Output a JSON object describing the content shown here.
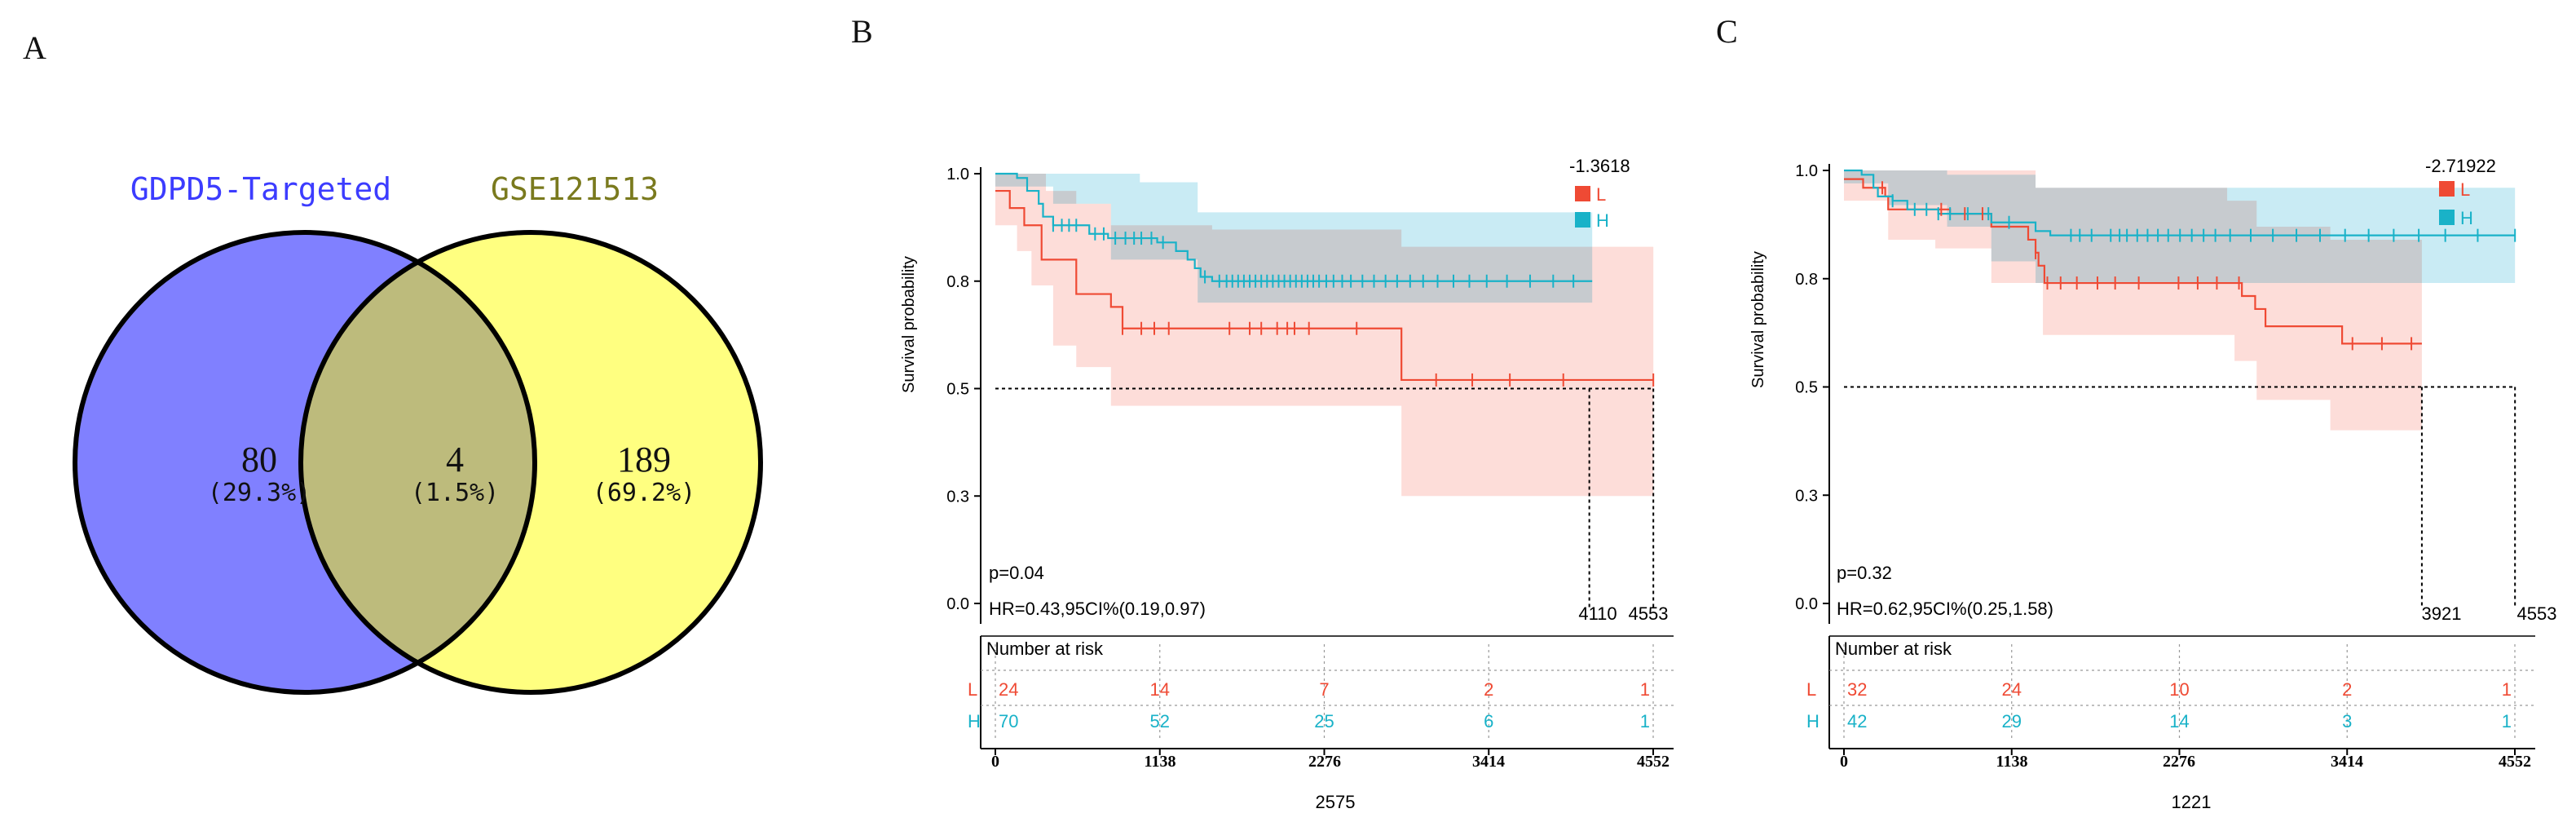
{
  "chart_data": [
    {
      "type": "venn",
      "panel_label": "A",
      "sets": [
        {
          "name": "GDPD5-Targeted",
          "color": "#8080ff",
          "label_color": "#3c3cff"
        },
        {
          "name": "GSE121513",
          "color": "#ffff80",
          "label_color": "#7a7a1e"
        }
      ],
      "overlap_color": "#bdbb7c",
      "regions": [
        {
          "region": "GDPD5-Targeted only",
          "count": "80",
          "percent": "(29.3%)"
        },
        {
          "region": "intersection",
          "count": "4",
          "percent": "(1.5%)"
        },
        {
          "region": "GSE121513 only",
          "count": "189",
          "percent": "(69.2%)"
        }
      ]
    },
    {
      "type": "survival",
      "panel_label": "B",
      "ylabel": "Survival probability",
      "yticks": [
        "0.0",
        "0.3",
        "0.5",
        "0.8",
        "1.0"
      ],
      "ytick_values": [
        0,
        0.25,
        0.5,
        0.75,
        1.0
      ],
      "xlim": [
        0,
        4552
      ],
      "xticks": [
        "0",
        "1138",
        "2276",
        "3414",
        "4552"
      ],
      "xlabel": "2575",
      "legend_title": "-1.3618",
      "legend": [
        {
          "name": "L",
          "color": "#ef4a34"
        },
        {
          "name": "H",
          "color": "#19b2c8"
        }
      ],
      "p_value": "p=0.04",
      "hr": "HR=0.43,95CI%(0.19,0.97)",
      "median_labels": [
        "4110",
        "4553"
      ],
      "median_times": [
        4110,
        4553
      ],
      "risk_title": "Number at risk",
      "risk_table": [
        {
          "group": "L",
          "values": [
            "24",
            "14",
            "7",
            "2",
            "1"
          ]
        },
        {
          "group": "H",
          "values": [
            "70",
            "52",
            "25",
            "6",
            "1"
          ]
        }
      ],
      "series": [
        {
          "name": "L",
          "color": "#ef4a34",
          "ci_color": "#fcd2cc",
          "steps": [
            [
              0,
              0.96
            ],
            [
              100,
              0.92
            ],
            [
              200,
              0.88
            ],
            [
              320,
              0.8
            ],
            [
              560,
              0.76
            ],
            [
              560,
              0.72
            ],
            [
              800,
              0.69
            ],
            [
              880,
              0.64
            ],
            [
              2710,
              0.64
            ],
            [
              2810,
              0.52
            ],
            [
              4553,
              0.52
            ]
          ],
          "upper": [
            [
              0,
              1.0
            ],
            [
              150,
              1.0
            ],
            [
              350,
              0.96
            ],
            [
              560,
              0.93
            ],
            [
              800,
              0.88
            ],
            [
              1500,
              0.87
            ],
            [
              2710,
              0.87
            ],
            [
              2810,
              0.83
            ],
            [
              4553,
              0.83
            ]
          ],
          "lower": [
            [
              0,
              0.88
            ],
            [
              150,
              0.82
            ],
            [
              250,
              0.74
            ],
            [
              400,
              0.6
            ],
            [
              560,
              0.55
            ],
            [
              800,
              0.46
            ],
            [
              2710,
              0.46
            ],
            [
              2810,
              0.25
            ],
            [
              4553,
              0.25
            ]
          ],
          "censor": [
            880,
            1010,
            1100,
            1200,
            1620,
            1760,
            1840,
            1950,
            2020,
            2070,
            2170,
            2500,
            3050,
            3300,
            3560,
            3930,
            4553
          ]
        },
        {
          "name": "H",
          "color": "#19b2c8",
          "ci_color": "#c9ebf4",
          "steps": [
            [
              0,
              1.0
            ],
            [
              150,
              0.99
            ],
            [
              220,
              0.96
            ],
            [
              300,
              0.93
            ],
            [
              330,
              0.9
            ],
            [
              400,
              0.88
            ],
            [
              560,
              0.88
            ],
            [
              650,
              0.86
            ],
            [
              780,
              0.85
            ],
            [
              1120,
              0.84
            ],
            [
              1250,
              0.82
            ],
            [
              1330,
              0.8
            ],
            [
              1380,
              0.78
            ],
            [
              1420,
              0.76
            ],
            [
              1500,
              0.75
            ],
            [
              4130,
              0.75
            ]
          ],
          "upper": [
            [
              0,
              1.0
            ],
            [
              500,
              1.0
            ],
            [
              1000,
              0.98
            ],
            [
              1400,
              0.91
            ],
            [
              4130,
              0.91
            ]
          ],
          "lower": [
            [
              0,
              0.97
            ],
            [
              400,
              0.93
            ],
            [
              800,
              0.8
            ],
            [
              1400,
              0.7
            ],
            [
              4130,
              0.68
            ]
          ],
          "censor": [
            400,
            460,
            510,
            560,
            690,
            750,
            830,
            900,
            960,
            1010,
            1080,
            1160,
            1450,
            1550,
            1600,
            1640,
            1680,
            1720,
            1760,
            1800,
            1840,
            1880,
            1920,
            1960,
            2000,
            2040,
            2080,
            2120,
            2160,
            2200,
            2240,
            2290,
            2340,
            2400,
            2460,
            2540,
            2620,
            2700,
            2780,
            2870,
            2960,
            3060,
            3170,
            3280,
            3400,
            3540,
            3700,
            3860,
            4000
          ]
        }
      ]
    },
    {
      "type": "survival",
      "panel_label": "C",
      "ylabel": "Survival probability",
      "yticks": [
        "0.0",
        "0.3",
        "0.5",
        "0.8",
        "1.0"
      ],
      "ytick_values": [
        0,
        0.25,
        0.5,
        0.75,
        1.0
      ],
      "xlim": [
        0,
        4552
      ],
      "xticks": [
        "0",
        "1138",
        "2276",
        "3414",
        "4552"
      ],
      "xlabel": "1221",
      "legend_title": "-2.71922",
      "legend": [
        {
          "name": "L",
          "color": "#ef4a34"
        },
        {
          "name": "H",
          "color": "#19b2c8"
        }
      ],
      "p_value": "p=0.32",
      "hr": "HR=0.62,95CI%(0.25,1.58)",
      "median_labels": [
        "3921",
        "4553"
      ],
      "median_times": [
        3921,
        4553
      ],
      "risk_title": "Number at risk",
      "risk_table": [
        {
          "group": "L",
          "values": [
            "32",
            "24",
            "10",
            "2",
            "1"
          ]
        },
        {
          "group": "H",
          "values": [
            "42",
            "29",
            "14",
            "3",
            "1"
          ]
        }
      ],
      "series": [
        {
          "name": "L",
          "color": "#ef4a34",
          "ci_color": "#fcd2cc",
          "steps": [
            [
              0,
              0.98
            ],
            [
              130,
              0.96
            ],
            [
              280,
              0.94
            ],
            [
              300,
              0.91
            ],
            [
              620,
              0.91
            ],
            [
              720,
              0.9
            ],
            [
              1000,
              0.87
            ],
            [
              1250,
              0.84
            ],
            [
              1300,
              0.81
            ],
            [
              1320,
              0.78
            ],
            [
              1360,
              0.74
            ],
            [
              2620,
              0.74
            ],
            [
              2700,
              0.71
            ],
            [
              2790,
              0.68
            ],
            [
              2860,
              0.64
            ],
            [
              3300,
              0.64
            ],
            [
              3380,
              0.6
            ],
            [
              3921,
              0.6
            ]
          ],
          "upper": [
            [
              0,
              1.0
            ],
            [
              600,
              1.0
            ],
            [
              1300,
              0.96
            ],
            [
              1480,
              0.96
            ],
            [
              2600,
              0.93
            ],
            [
              2800,
              0.87
            ],
            [
              3300,
              0.84
            ],
            [
              3921,
              0.84
            ]
          ],
          "lower": [
            [
              0,
              0.93
            ],
            [
              300,
              0.84
            ],
            [
              620,
              0.82
            ],
            [
              1000,
              0.74
            ],
            [
              1350,
              0.62
            ],
            [
              2650,
              0.56
            ],
            [
              2800,
              0.47
            ],
            [
              3300,
              0.4
            ],
            [
              3921,
              0.4
            ]
          ],
          "censor": [
            260,
            660,
            820,
            940,
            1300,
            1380,
            1470,
            1580,
            1720,
            1840,
            2000,
            2270,
            2400,
            2530,
            2680,
            3450,
            3650,
            3850
          ]
        },
        {
          "name": "H",
          "color": "#19b2c8",
          "ci_color": "#c9ebf4",
          "steps": [
            [
              0,
              1.0
            ],
            [
              120,
              0.99
            ],
            [
              200,
              0.96
            ],
            [
              230,
              0.94
            ],
            [
              330,
              0.93
            ],
            [
              430,
              0.91
            ],
            [
              640,
              0.9
            ],
            [
              1000,
              0.88
            ],
            [
              1300,
              0.86
            ],
            [
              1400,
              0.85
            ],
            [
              4553,
              0.85
            ]
          ],
          "upper": [
            [
              0,
              1.0
            ],
            [
              300,
              1.0
            ],
            [
              700,
              0.99
            ],
            [
              1300,
              0.96
            ],
            [
              4553,
              0.96
            ]
          ],
          "lower": [
            [
              0,
              0.97
            ],
            [
              300,
              0.92
            ],
            [
              700,
              0.87
            ],
            [
              1000,
              0.79
            ],
            [
              1300,
              0.74
            ],
            [
              4553,
              0.74
            ]
          ],
          "censor": [
            330,
            480,
            560,
            640,
            720,
            840,
            980,
            1120,
            1540,
            1600,
            1680,
            1810,
            1870,
            1920,
            1990,
            2060,
            2130,
            2200,
            2280,
            2360,
            2440,
            2520,
            2620,
            2760,
            2910,
            3070,
            3230,
            3400,
            3560,
            3730,
            3900,
            4080,
            4300,
            4553
          ]
        }
      ]
    }
  ]
}
